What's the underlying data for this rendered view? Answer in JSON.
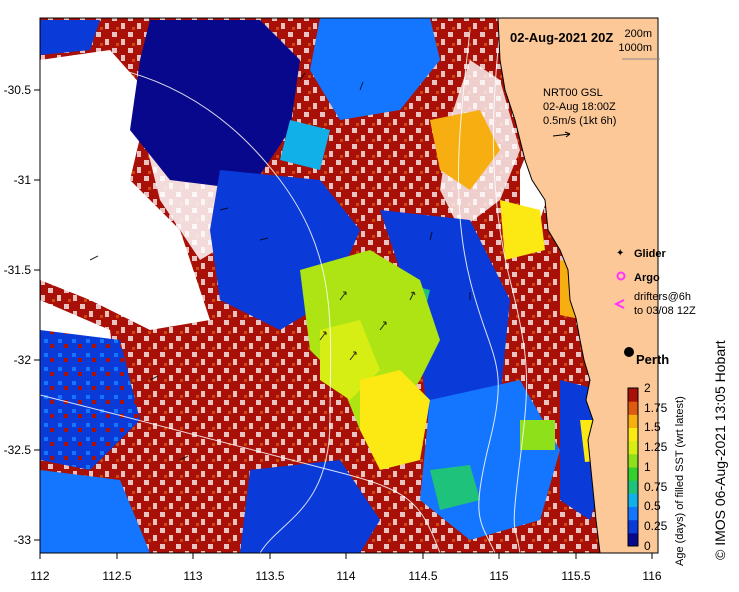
{
  "map": {
    "title": "02-Aug-2021 20Z",
    "depth_legend": [
      "200m",
      "1000m"
    ],
    "current_info": [
      "NRT00 GSL",
      "02-Aug 18:00Z",
      "0.5m/s (1kt 6h)"
    ],
    "lon_ticks": [
      "112",
      "112.5",
      "113",
      "113.5",
      "114",
      "114.5",
      "115",
      "115.5",
      "116"
    ],
    "lat_ticks": [
      "-30.5",
      "-31",
      "-31.5",
      "-32",
      "-32.5",
      "-33"
    ],
    "lon_range": [
      112,
      116
    ],
    "lat_range": [
      -33.1,
      -30.1
    ],
    "city": "Perth",
    "legend": {
      "glider": "Glider",
      "argo": "Argo",
      "drifters_line1": "drifters@6h",
      "drifters_line2": "to 03/08 12Z"
    },
    "colorbar": {
      "ticks": [
        "0",
        "0.25",
        "0.5",
        "0.75",
        "1",
        "1.25",
        "1.5",
        "1.75",
        "2"
      ],
      "title": "Age (days) of filled SST (wrt latest)"
    },
    "credit": "© IMOS 06-Aug-2021 13:05 Hobart"
  },
  "colors": {
    "land": "#fcc898",
    "glider": "#ff33ff",
    "argo": "#ff33ff",
    "age_scale": [
      "#08088c",
      "#0a3ad8",
      "#1476ff",
      "#11b0e8",
      "#1fc27a",
      "#34d12e",
      "#8ee01a",
      "#d6ee14",
      "#fce812",
      "#f7ae10",
      "#dd5a10",
      "#a81008"
    ]
  }
}
